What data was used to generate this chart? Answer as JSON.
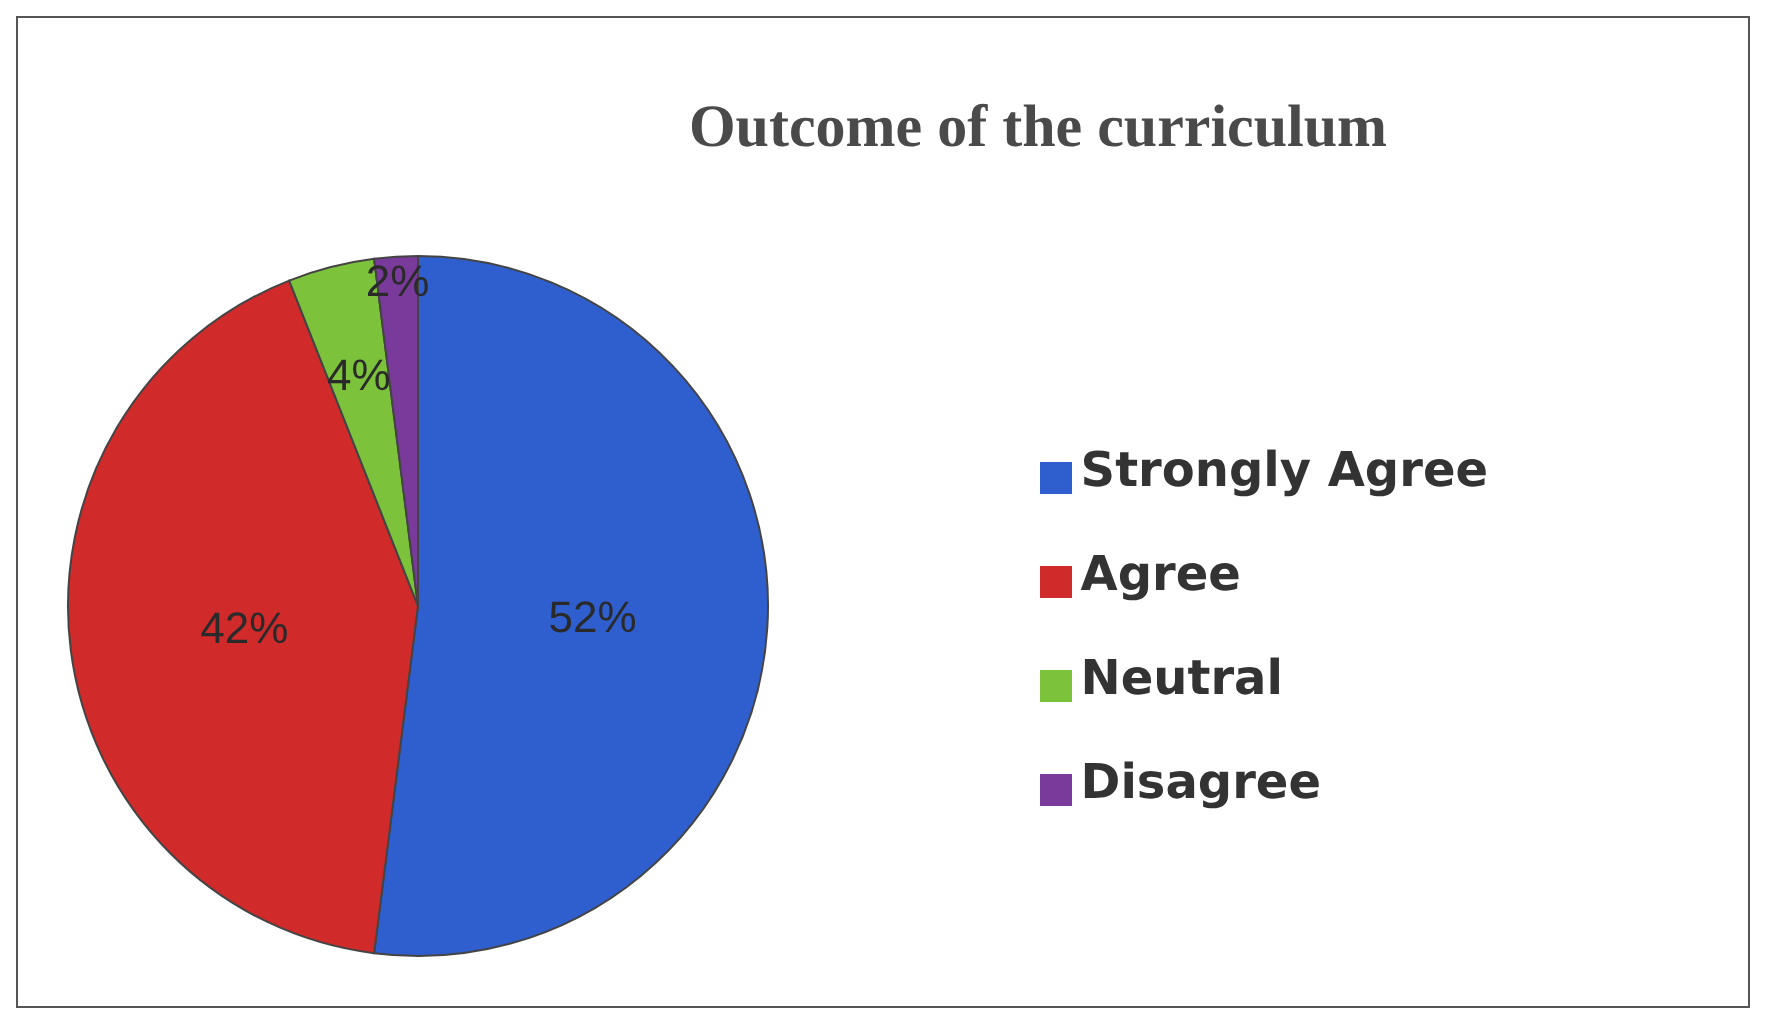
{
  "chart_data": {
    "type": "pie",
    "title": "Outcome of the curriculum",
    "categories": [
      "Strongly Agree",
      "Agree",
      "Neutral",
      "Disagree"
    ],
    "values": [
      52,
      42,
      4,
      2
    ],
    "colors": [
      "#2f5fcf",
      "#d02a2a",
      "#7cc23a",
      "#7a3a9c"
    ],
    "value_labels": [
      "52%",
      "42%",
      "4%",
      "2%"
    ],
    "legend": "right"
  }
}
